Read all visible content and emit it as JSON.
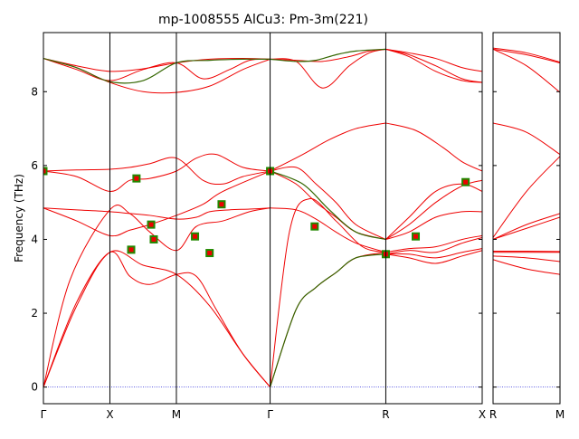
{
  "chart_data": {
    "type": "line",
    "title": "mp-1008555   AlCu3: Pm-3m(221)",
    "ylabel": "Frequency (THz)",
    "xlabel": "",
    "ylim": [
      -0.45,
      9.6
    ],
    "yticks": [
      0,
      2,
      4,
      6,
      8
    ],
    "grid": false,
    "legend": "none",
    "colors": {
      "band": "#ee0000",
      "highlight": "#336600",
      "marker_edge": "#228800",
      "marker_face": "#ee0000",
      "zero_line": "#2b2bd9"
    },
    "panels": [
      {
        "name": "main",
        "xlim": [
          0,
          6.6
        ],
        "ticks": [
          {
            "label": "Γ",
            "x": 0
          },
          {
            "label": "X",
            "x": 1
          },
          {
            "label": "M",
            "x": 2
          },
          {
            "label": "Γ",
            "x": 3.41
          },
          {
            "label": "R",
            "x": 5.15
          },
          {
            "label": "X",
            "x": 6.6
          }
        ],
        "bands": [
          {
            "x": [
              0,
              0.5,
              1,
              1.5,
              2,
              2.5,
              3.0,
              3.41
            ],
            "y": [
              0,
              2.2,
              3.65,
              3.3,
              3.05,
              2.2,
              0.9,
              0
            ]
          },
          {
            "x": [
              0,
              0.5,
              1,
              1.3,
              1.6,
              2.0,
              2.3,
              2.6,
              3.0,
              3.41
            ],
            "y": [
              0,
              2.3,
              3.65,
              3.0,
              2.78,
              3.05,
              3.0,
              2.1,
              0.9,
              0
            ]
          },
          {
            "x": [
              0,
              0.4,
              1,
              1.3,
              1.6,
              2.0,
              2.3,
              2.7,
              3.1,
              3.41
            ],
            "y": [
              0,
              2.9,
              4.8,
              4.7,
              4.2,
              3.7,
              4.35,
              4.5,
              4.75,
              4.85
            ]
          },
          {
            "x": [
              0,
              0.5,
              1,
              1.3,
              1.6,
              2.0,
              2.3,
              2.5,
              2.8,
              3.1,
              3.41
            ],
            "y": [
              4.85,
              4.8,
              4.75,
              4.7,
              4.65,
              4.55,
              4.6,
              4.75,
              4.8,
              4.82,
              4.85
            ]
          },
          {
            "x": [
              0,
              0.5,
              1,
              1.3,
              1.6,
              2.0,
              2.4,
              2.7,
              3.41
            ],
            "y": [
              4.85,
              4.5,
              4.1,
              4.25,
              4.4,
              4.65,
              4.95,
              5.3,
              5.85
            ]
          },
          {
            "x": [
              0,
              0.5,
              1,
              1.3,
              1.6,
              2.0,
              2.3,
              2.6,
              3.0,
              3.41
            ],
            "y": [
              5.85,
              5.7,
              5.3,
              5.6,
              5.65,
              5.85,
              6.2,
              6.3,
              5.95,
              5.85
            ]
          },
          {
            "x": [
              0,
              0.5,
              1,
              1.3,
              1.6,
              2.0,
              2.4,
              2.7,
              3.0,
              3.41
            ],
            "y": [
              5.85,
              5.88,
              5.9,
              5.95,
              6.05,
              6.2,
              5.6,
              5.5,
              5.7,
              5.85
            ]
          },
          {
            "x": [
              0,
              0.5,
              1,
              1.5,
              2.0,
              2.5,
              3.0,
              3.41
            ],
            "y": [
              8.9,
              8.65,
              8.25,
              8.0,
              7.98,
              8.15,
              8.6,
              8.88
            ]
          },
          {
            "x": [
              0,
              0.5,
              1,
              1.5,
              2.0,
              2.5,
              3.0,
              3.41
            ],
            "y": [
              8.9,
              8.7,
              8.55,
              8.62,
              8.78,
              8.88,
              8.9,
              8.88
            ]
          },
          {
            "x": [
              0,
              0.5,
              1,
              1.5,
              2.0,
              2.4,
              2.8,
              3.1,
              3.41
            ],
            "y": [
              8.9,
              8.6,
              8.3,
              8.6,
              8.78,
              8.35,
              8.6,
              8.85,
              8.88
            ]
          },
          {
            "x": [
              3.41,
              3.8,
              4.1,
              4.4,
              4.7,
              5.15
            ],
            "y": [
              0,
              2.1,
              2.7,
              3.1,
              3.5,
              3.65
            ]
          },
          {
            "x": [
              3.41,
              3.7,
              4.0,
              4.4,
              4.8,
              5.15
            ],
            "y": [
              0,
              4.2,
              5.1,
              4.5,
              3.8,
              3.65
            ]
          },
          {
            "x": [
              3.41,
              3.8,
              4.1,
              4.4,
              4.7,
              5.15
            ],
            "y": [
              4.85,
              4.8,
              4.55,
              4.2,
              3.9,
              3.65
            ]
          },
          {
            "x": [
              3.41,
              3.8,
              4.1,
              4.4,
              4.7,
              5.15
            ],
            "y": [
              5.85,
              5.5,
              5.0,
              4.6,
              4.2,
              4.0
            ]
          },
          {
            "x": [
              3.41,
              3.8,
              4.1,
              4.4,
              4.7,
              5.15
            ],
            "y": [
              5.85,
              5.95,
              5.5,
              5.0,
              4.4,
              4.0
            ]
          },
          {
            "x": [
              3.41,
              3.9,
              4.3,
              4.7,
              5.15
            ],
            "y": [
              5.85,
              6.3,
              6.7,
              7.0,
              7.15
            ]
          },
          {
            "x": [
              3.41,
              3.8,
              4.2,
              4.6,
              4.9,
              5.15
            ],
            "y": [
              8.88,
              8.82,
              8.1,
              8.7,
              9.05,
              9.15
            ]
          },
          {
            "x": [
              3.41,
              3.8,
              4.2,
              4.6,
              4.9,
              5.15
            ],
            "y": [
              8.88,
              8.85,
              8.82,
              8.95,
              9.1,
              9.15
            ]
          },
          {
            "x": [
              5.15,
              5.5,
              5.9,
              6.3,
              6.6
            ],
            "y": [
              3.6,
              3.5,
              3.35,
              3.55,
              3.7
            ]
          },
          {
            "x": [
              5.15,
              5.5,
              5.9,
              6.3,
              6.6
            ],
            "y": [
              3.6,
              3.6,
              3.5,
              3.65,
              3.75
            ]
          },
          {
            "x": [
              5.15,
              5.5,
              5.9,
              6.3,
              6.6
            ],
            "y": [
              3.6,
              3.7,
              3.65,
              3.9,
              4.05
            ]
          },
          {
            "x": [
              5.15,
              5.5,
              5.9,
              6.3,
              6.6
            ],
            "y": [
              3.65,
              3.75,
              3.8,
              4.0,
              4.1
            ]
          },
          {
            "x": [
              5.15,
              5.5,
              5.9,
              6.3,
              6.6
            ],
            "y": [
              4.0,
              4.2,
              4.6,
              4.75,
              4.75
            ]
          },
          {
            "x": [
              5.15,
              5.5,
              5.9,
              6.3,
              6.6
            ],
            "y": [
              4.0,
              4.4,
              5.0,
              5.45,
              5.6
            ]
          },
          {
            "x": [
              5.15,
              5.5,
              5.9,
              6.3,
              6.6
            ],
            "y": [
              4.0,
              4.6,
              5.3,
              5.5,
              5.3
            ]
          },
          {
            "x": [
              5.15,
              5.6,
              6.0,
              6.3,
              6.6
            ],
            "y": [
              7.15,
              6.95,
              6.5,
              6.1,
              5.85
            ]
          },
          {
            "x": [
              5.15,
              5.5,
              5.9,
              6.3,
              6.6
            ],
            "y": [
              9.15,
              8.95,
              8.55,
              8.3,
              8.25
            ]
          },
          {
            "x": [
              5.15,
              5.5,
              5.9,
              6.3,
              6.6
            ],
            "y": [
              9.15,
              9.0,
              8.7,
              8.35,
              8.25
            ]
          },
          {
            "x": [
              5.15,
              5.5,
              5.9,
              6.3,
              6.6
            ],
            "y": [
              9.15,
              9.05,
              8.9,
              8.65,
              8.55
            ]
          }
        ],
        "highlight_bands": [
          {
            "x": [
              0,
              0.5,
              1,
              1.5,
              2,
              2.5,
              3.0,
              3.41
            ],
            "y": [
              8.9,
              8.65,
              8.27,
              8.3,
              8.78,
              8.85,
              8.88,
              8.88
            ]
          },
          {
            "x": [
              3.41,
              3.8,
              4.1,
              4.4,
              4.7,
              5.15
            ],
            "y": [
              8.88,
              8.82,
              8.85,
              9.0,
              9.1,
              9.15
            ]
          },
          {
            "x": [
              3.41,
              3.8,
              4.1,
              4.4,
              4.7,
              5.15
            ],
            "y": [
              0,
              2.1,
              2.7,
              3.1,
              3.5,
              3.6
            ]
          },
          {
            "x": [
              3.41,
              3.9,
              4.3,
              4.7,
              5.15
            ],
            "y": [
              5.85,
              5.5,
              4.8,
              4.2,
              4.0
            ]
          }
        ],
        "markers": [
          {
            "x": 0,
            "y": 5.85
          },
          {
            "x": 1.4,
            "y": 5.65
          },
          {
            "x": 1.32,
            "y": 3.72
          },
          {
            "x": 1.62,
            "y": 4.4
          },
          {
            "x": 1.66,
            "y": 4.0
          },
          {
            "x": 2.28,
            "y": 4.08
          },
          {
            "x": 2.5,
            "y": 3.63
          },
          {
            "x": 2.68,
            "y": 4.95
          },
          {
            "x": 3.41,
            "y": 5.85
          },
          {
            "x": 4.08,
            "y": 4.35
          },
          {
            "x": 5.15,
            "y": 3.6
          },
          {
            "x": 5.6,
            "y": 4.08
          },
          {
            "x": 6.35,
            "y": 5.55
          }
        ]
      },
      {
        "name": "side",
        "xlim": [
          0,
          1
        ],
        "ticks": [
          {
            "label": "R",
            "x": 0
          },
          {
            "label": "M",
            "x": 1
          }
        ],
        "bands": [
          {
            "x": [
              0,
              0.5,
              1
            ],
            "y": [
              3.45,
              3.2,
              3.05
            ]
          },
          {
            "x": [
              0,
              0.5,
              1
            ],
            "y": [
              3.55,
              3.5,
              3.4
            ]
          },
          {
            "x": [
              0,
              0.5,
              1
            ],
            "y": [
              3.65,
              3.65,
              3.65
            ]
          },
          {
            "x": [
              0,
              0.5,
              1
            ],
            "y": [
              3.68,
              3.68,
              3.67
            ]
          },
          {
            "x": [
              0,
              0.5,
              1
            ],
            "y": [
              4.0,
              4.3,
              4.6
            ]
          },
          {
            "x": [
              0,
              0.5,
              1
            ],
            "y": [
              4.0,
              4.4,
              4.7
            ]
          },
          {
            "x": [
              0,
              0.5,
              1
            ],
            "y": [
              4.05,
              5.3,
              6.25
            ]
          },
          {
            "x": [
              0,
              0.5,
              1
            ],
            "y": [
              7.15,
              6.9,
              6.3
            ]
          },
          {
            "x": [
              0,
              0.5,
              1
            ],
            "y": [
              9.15,
              8.7,
              7.98
            ]
          },
          {
            "x": [
              0,
              0.5,
              1
            ],
            "y": [
              9.15,
              9.0,
              8.78
            ]
          },
          {
            "x": [
              0,
              0.5,
              1
            ],
            "y": [
              9.18,
              9.05,
              8.8
            ]
          }
        ],
        "highlight_bands": [],
        "markers": []
      }
    ]
  }
}
